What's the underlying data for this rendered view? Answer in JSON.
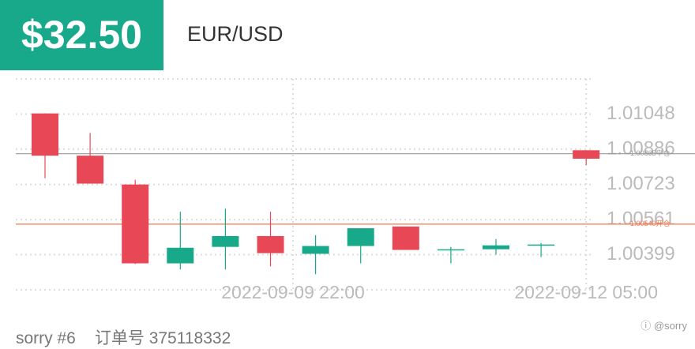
{
  "header": {
    "amount": "$32.50"
  },
  "footer": {
    "user": "sorry #6",
    "order": "订单号 375118332",
    "watermark": "ⓘ @sorry"
  },
  "chart_data": {
    "type": "candlestick",
    "title": "EUR/USD",
    "open": [
      1.01051,
      1.00856,
      1.00723,
      1.00359,
      1.00435,
      1.00485,
      1.00403,
      1.00439,
      1.00529,
      1.00421,
      1.00424,
      1.00442,
      1.00881
    ],
    "high": [
      1.01051,
      1.00961,
      1.00745,
      1.00597,
      1.00611,
      1.00597,
      1.00489,
      1.00521,
      1.00529,
      1.00435,
      1.00471,
      1.00453,
      1.00881
    ],
    "low": [
      1.00752,
      1.00727,
      1.00356,
      1.00331,
      1.00331,
      1.00345,
      1.00309,
      1.00359,
      1.00421,
      1.00359,
      1.00399,
      1.00388,
      1.00813
    ],
    "close": [
      1.00856,
      1.00727,
      1.00359,
      1.00431,
      1.00485,
      1.00406,
      1.00439,
      1.00521,
      1.00421,
      1.00424,
      1.00442,
      1.00446,
      1.00842
    ],
    "up_color": "#17a98a",
    "down_color": "#e84855",
    "ylim": [
      1.00237,
      1.0121
    ],
    "yticks": [
      1.01048,
      1.00886,
      1.00723,
      1.00561,
      1.00399
    ],
    "xticks": [
      {
        "value": 5.5,
        "label": "2022-09-09 22:00"
      },
      {
        "value": 12,
        "label": "2022-09-12 05:00"
      }
    ],
    "grid": true,
    "ref_lines": [
      {
        "value": 1.00865,
        "label": "1.00865平仓",
        "color": "#9a9a9a"
      },
      {
        "value": 1.0054,
        "label": "1.00540开仓",
        "color": "#f07850"
      }
    ]
  }
}
